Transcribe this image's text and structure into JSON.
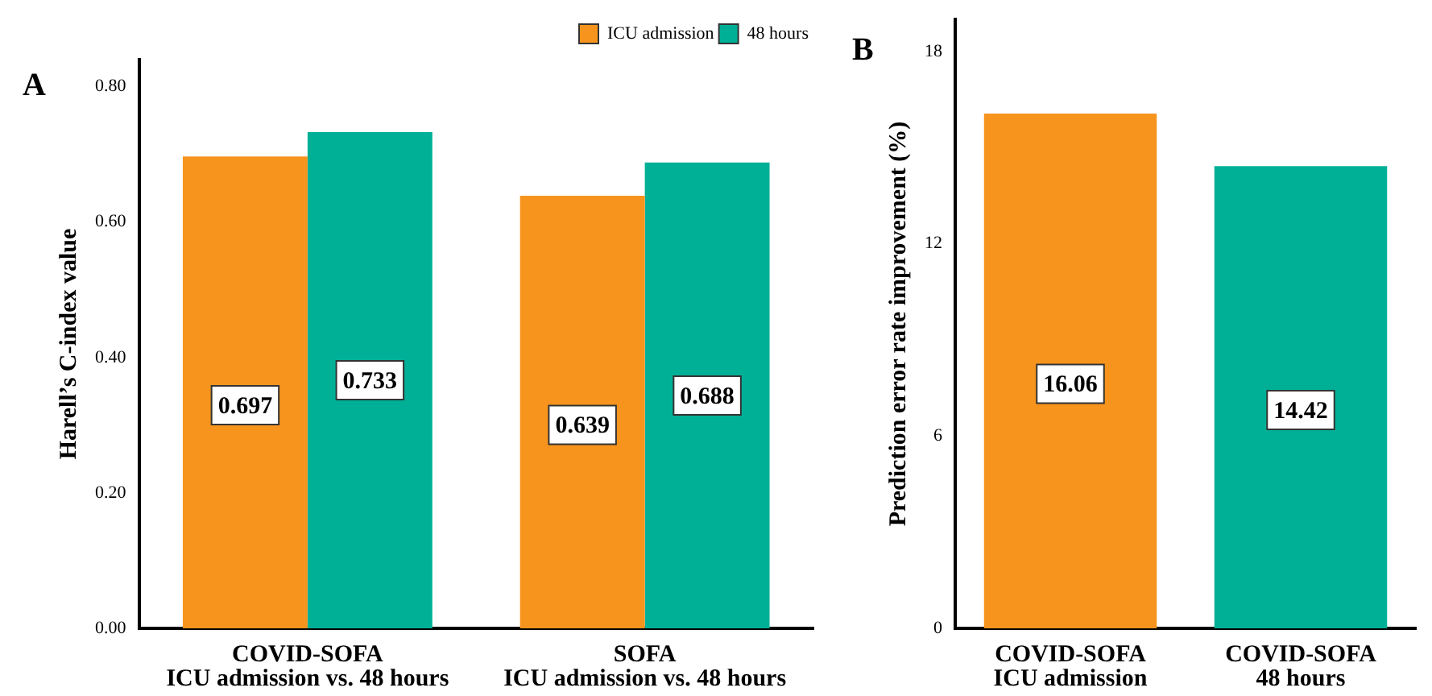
{
  "chart_data": [
    {
      "type": "bar",
      "title": "A",
      "ylabel": "Harell’s C-index value",
      "categories": [
        "COVID-SOFA\nICU admission vs. 48 hours",
        "SOFA\nICU admission vs. 48 hours"
      ],
      "series": [
        {
          "name": "ICU admission",
          "color": "#f7941d",
          "values": [
            0.697,
            0.639
          ]
        },
        {
          "name": "48 hours",
          "color": "#00b096",
          "values": [
            0.733,
            0.688
          ]
        }
      ],
      "ylim": [
        0,
        0.84
      ],
      "yticks": [
        {
          "value": 0,
          "label": "0.00"
        },
        {
          "value": 0.2,
          "label": "0.20"
        },
        {
          "value": 0.4,
          "label": "0.40"
        },
        {
          "value": 0.6,
          "label": "0.60"
        },
        {
          "value": 0.8,
          "label": "0.80"
        }
      ],
      "data_labels": true,
      "legend": "top right",
      "grid": false
    },
    {
      "type": "bar",
      "title": "B",
      "ylabel": "Prediction error rate improvement (%)",
      "categories": [
        "COVID-SOFA\nICU admission",
        "COVID-SOFA\n48 hours"
      ],
      "values": [
        16.06,
        14.42
      ],
      "colors": [
        "#f7941d",
        "#00b096"
      ],
      "ylim": [
        0,
        19
      ],
      "yticks": [
        0,
        6,
        12,
        18
      ],
      "data_labels": true,
      "legend": false,
      "grid": false
    }
  ]
}
